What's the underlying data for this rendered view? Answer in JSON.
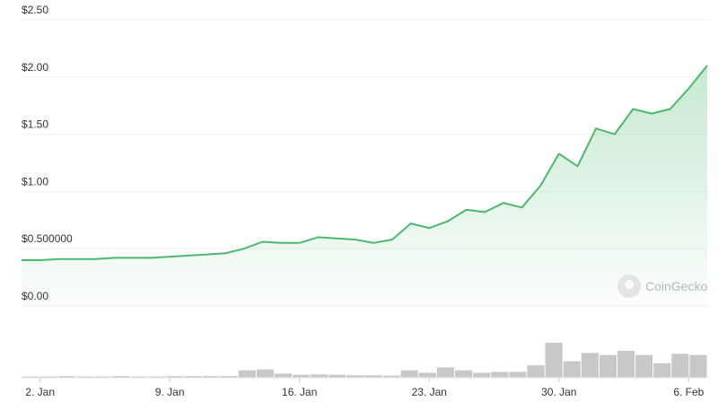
{
  "chart_data": {
    "type": "area",
    "title": "",
    "xlabel": "",
    "ylabel": "",
    "ylim": [
      0,
      2.5
    ],
    "x_range": [
      "2024-01-01",
      "2024-02-07"
    ],
    "y_ticks": [
      {
        "value": 0,
        "label": "$0.00"
      },
      {
        "value": 0.5,
        "label": "$0.500000"
      },
      {
        "value": 1.0,
        "label": "$1.00"
      },
      {
        "value": 1.5,
        "label": "$1.50"
      },
      {
        "value": 2.0,
        "label": "$2.00"
      },
      {
        "value": 2.5,
        "label": "$2.50"
      }
    ],
    "x_ticks": [
      {
        "date": "2024-01-02",
        "label": "2. Jan"
      },
      {
        "date": "2024-01-09",
        "label": "9. Jan"
      },
      {
        "date": "2024-01-16",
        "label": "16. Jan"
      },
      {
        "date": "2024-01-23",
        "label": "23. Jan"
      },
      {
        "date": "2024-01-30",
        "label": "30. Jan"
      },
      {
        "date": "2024-02-06",
        "label": "6. Feb"
      }
    ],
    "grid": true,
    "line_color": "#4cb86e",
    "fill_color": "#4cb86e",
    "volume_color": "#c8c8c8",
    "series": [
      {
        "values": [
          {
            "x": "2024-01-01",
            "y": 0.4
          },
          {
            "x": "2024-01-02",
            "y": 0.4
          },
          {
            "x": "2024-01-03",
            "y": 0.41
          },
          {
            "x": "2024-01-04",
            "y": 0.41
          },
          {
            "x": "2024-01-05",
            "y": 0.41
          },
          {
            "x": "2024-01-06",
            "y": 0.42
          },
          {
            "x": "2024-01-07",
            "y": 0.42
          },
          {
            "x": "2024-01-08",
            "y": 0.42
          },
          {
            "x": "2024-01-09",
            "y": 0.43
          },
          {
            "x": "2024-01-10",
            "y": 0.44
          },
          {
            "x": "2024-01-11",
            "y": 0.45
          },
          {
            "x": "2024-01-12",
            "y": 0.46
          },
          {
            "x": "2024-01-13",
            "y": 0.5
          },
          {
            "x": "2024-01-14",
            "y": 0.56
          },
          {
            "x": "2024-01-15",
            "y": 0.55
          },
          {
            "x": "2024-01-16",
            "y": 0.55
          },
          {
            "x": "2024-01-17",
            "y": 0.6
          },
          {
            "x": "2024-01-18",
            "y": 0.59
          },
          {
            "x": "2024-01-19",
            "y": 0.58
          },
          {
            "x": "2024-01-20",
            "y": 0.55
          },
          {
            "x": "2024-01-21",
            "y": 0.58
          },
          {
            "x": "2024-01-22",
            "y": 0.72
          },
          {
            "x": "2024-01-23",
            "y": 0.68
          },
          {
            "x": "2024-01-24",
            "y": 0.74
          },
          {
            "x": "2024-01-25",
            "y": 0.84
          },
          {
            "x": "2024-01-26",
            "y": 0.82
          },
          {
            "x": "2024-01-27",
            "y": 0.9
          },
          {
            "x": "2024-01-28",
            "y": 0.86
          },
          {
            "x": "2024-01-29",
            "y": 1.05
          },
          {
            "x": "2024-01-30",
            "y": 1.33
          },
          {
            "x": "2024-01-31",
            "y": 1.22
          },
          {
            "x": "2024-02-01",
            "y": 1.55
          },
          {
            "x": "2024-02-02",
            "y": 1.5
          },
          {
            "x": "2024-02-03",
            "y": 1.72
          },
          {
            "x": "2024-02-04",
            "y": 1.68
          },
          {
            "x": "2024-02-05",
            "y": 1.72
          },
          {
            "x": "2024-02-06",
            "y": 1.9
          },
          {
            "x": "2024-02-07",
            "y": 2.1
          }
        ]
      }
    ],
    "volume_relative": [
      0.03,
      0.03,
      0.04,
      0.03,
      0.03,
      0.04,
      0.03,
      0.03,
      0.04,
      0.04,
      0.04,
      0.04,
      0.18,
      0.2,
      0.1,
      0.07,
      0.08,
      0.07,
      0.06,
      0.06,
      0.05,
      0.18,
      0.12,
      0.25,
      0.18,
      0.12,
      0.14,
      0.14,
      0.3,
      0.85,
      0.4,
      0.6,
      0.55,
      0.65,
      0.55,
      0.35,
      0.58,
      0.55
    ]
  },
  "watermark": {
    "text": "CoinGecko",
    "icon": "coingecko-gecko-icon"
  }
}
